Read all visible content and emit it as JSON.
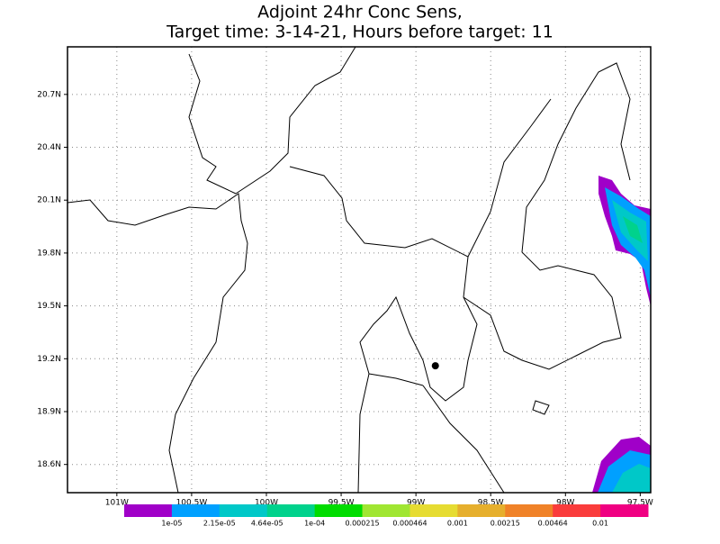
{
  "map": {
    "title": [
      "Adjoint 24hr Conc Sens,",
      "Target time: 3-14-21, Hours before target: 11"
    ],
    "lat_range": [
      18.44,
      20.97
    ],
    "lon_range": [
      -101.33,
      -97.43
    ],
    "lat_ticks": [
      {
        "value": 20.7,
        "label": "20.7N"
      },
      {
        "value": 20.4,
        "label": "20.4N"
      },
      {
        "value": 20.1,
        "label": "20.1N"
      },
      {
        "value": 19.8,
        "label": "19.8N"
      },
      {
        "value": 19.5,
        "label": "19.5N"
      },
      {
        "value": 19.2,
        "label": "19.2N"
      },
      {
        "value": 18.9,
        "label": "18.9N"
      },
      {
        "value": 18.6,
        "label": "18.6N"
      }
    ],
    "lon_ticks": [
      {
        "value": -101,
        "label": "101W"
      },
      {
        "value": -100.5,
        "label": "100.5W"
      },
      {
        "value": -100,
        "label": "100W"
      },
      {
        "value": -99.5,
        "label": "99.5W"
      },
      {
        "value": -99,
        "label": "99W"
      },
      {
        "value": -98.5,
        "label": "98.5W"
      },
      {
        "value": -98,
        "label": "98W"
      },
      {
        "value": -97.5,
        "label": "97.5W"
      }
    ],
    "grid": true,
    "marker": {
      "lat": 19.16,
      "lon": -98.87
    },
    "colorbar": {
      "colors": [
        "#a000c8",
        "#00a0ff",
        "#00c8c8",
        "#00d28c",
        "#00dc00",
        "#a0e632",
        "#e6dc32",
        "#e6af2d",
        "#f08228",
        "#fa3c3c",
        "#f00082"
      ],
      "levels": [
        {
          "value": 1e-05,
          "label": "1e-05"
        },
        {
          "value": 2.15e-05,
          "label": "2.15e-05"
        },
        {
          "value": 4.64e-05,
          "label": "4.64e-05"
        },
        {
          "value": 0.0001,
          "label": "1e-04"
        },
        {
          "value": 0.000215,
          "label": "0.000215"
        },
        {
          "value": 0.000464,
          "label": "0.000464"
        },
        {
          "value": 0.001,
          "label": "0.001"
        },
        {
          "value": 0.00215,
          "label": "0.00215"
        },
        {
          "value": 0.00464,
          "label": "0.00464"
        },
        {
          "value": 0.01,
          "label": "0.01"
        }
      ]
    }
  }
}
